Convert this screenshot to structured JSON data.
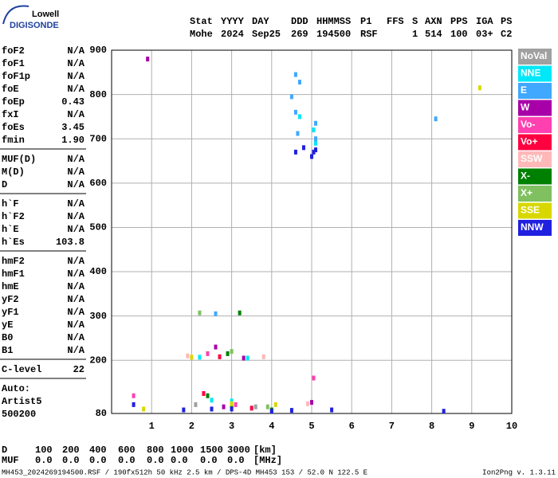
{
  "logo": {
    "line1": "Lowell",
    "line2": "DIGISONDE"
  },
  "header": [
    {
      "label": "Stat",
      "value": "Mohe"
    },
    {
      "label": "YYYY",
      "value": "2024"
    },
    {
      "label": "DAY",
      "value": "Sep25"
    },
    {
      "label": "DDD",
      "value": "269"
    },
    {
      "label": "HHMMSS",
      "value": "194500"
    },
    {
      "label": "P1",
      "value": "RSF"
    },
    {
      "label": "FFS"
    },
    {
      "label": "S",
      "value": "1"
    },
    {
      "label": "AXN",
      "value": "514"
    },
    {
      "label": "PPS",
      "value": "100"
    },
    {
      "label": "IGA",
      "value": "03+"
    },
    {
      "label": "PS",
      "value": "C2"
    }
  ],
  "parameters": [
    [
      [
        "foF2",
        "N/A"
      ],
      [
        "foF1",
        "N/A"
      ],
      [
        "foF1p",
        "N/A"
      ],
      [
        "foE",
        "N/A"
      ],
      [
        "foEp",
        "0.43"
      ],
      [
        "fxI",
        "N/A"
      ],
      [
        "foEs",
        "3.45"
      ],
      [
        "fmin",
        "1.90"
      ]
    ],
    [
      [
        "MUF(D)",
        "N/A"
      ],
      [
        "M(D)",
        "N/A"
      ],
      [
        "D",
        "N/A"
      ]
    ],
    [
      [
        "h`F",
        "N/A"
      ],
      [
        "h`F2",
        "N/A"
      ],
      [
        "h`E",
        "N/A"
      ],
      [
        "h`Es",
        "103.8"
      ]
    ],
    [
      [
        "hmF2",
        "N/A"
      ],
      [
        "hmF1",
        "N/A"
      ],
      [
        "hmE",
        "N/A"
      ],
      [
        "yF2",
        "N/A"
      ],
      [
        "yF1",
        "N/A"
      ],
      [
        "yE",
        "N/A"
      ],
      [
        "B0",
        "N/A"
      ],
      [
        "B1",
        "N/A"
      ]
    ],
    [
      [
        "C-level",
        "22"
      ]
    ]
  ],
  "autoscaling": [
    "Auto:",
    "Artist5",
    "500200"
  ],
  "bottom_table": [
    [
      "D",
      "100",
      "200",
      "400",
      "600",
      "800",
      "1000",
      "1500",
      "3000",
      "[km]"
    ],
    [
      "MUF",
      "0.0",
      "0.0",
      "0.0",
      "0.0",
      "0.0",
      "0.0",
      "0.0",
      "0.0",
      "[MHz]"
    ]
  ],
  "footer": {
    "left": "MH453_2024269194500.RSF / 190fx512h 50 kHz 2.5 km / DPS-4D MH453 153 / 52.0 N 122.5 E",
    "right": "Ion2Png v. 1.3.11"
  },
  "chart_data": {
    "type": "scatter",
    "xlim": [
      0,
      10
    ],
    "ylim": [
      80,
      900
    ],
    "xticks": [
      1,
      2,
      3,
      4,
      5,
      6,
      7,
      8,
      9,
      10
    ],
    "yticks": [
      80,
      200,
      300,
      400,
      500,
      600,
      700,
      800,
      900
    ],
    "grid": true,
    "legend": "right",
    "series": [
      {
        "name": "NoVal",
        "color": "#a0a0a0",
        "x": [
          2.1,
          3.6
        ],
        "y": [
          100,
          95
        ]
      },
      {
        "name": "NNE",
        "color": "#00e8f8",
        "x": [
          4.7,
          5.05,
          5.1,
          2.5,
          3.0,
          2.2,
          3.4
        ],
        "y": [
          750,
          720,
          690,
          110,
          108,
          207,
          205
        ]
      },
      {
        "name": "E",
        "color": "#40a8ff",
        "x": [
          4.6,
          4.7,
          4.5,
          4.6,
          8.1,
          5.1,
          5.1,
          4.65,
          2.6
        ],
        "y": [
          845,
          828,
          795,
          760,
          745,
          735,
          700,
          712,
          305
        ]
      },
      {
        "name": "W",
        "color": "#a800a8",
        "x": [
          0.9,
          2.6,
          3.3,
          2.8,
          5.0
        ],
        "y": [
          880,
          230,
          205,
          95,
          105
        ]
      },
      {
        "name": "Vo-",
        "color": "#ff40b0",
        "x": [
          2.4,
          3.1,
          5.05,
          0.55
        ],
        "y": [
          215,
          100,
          160,
          120
        ]
      },
      {
        "name": "Vo+",
        "color": "#ff0040",
        "x": [
          2.7,
          3.5,
          2.3
        ],
        "y": [
          208,
          92,
          125
        ]
      },
      {
        "name": "SSW",
        "color": "#ffb8b8",
        "x": [
          1.9,
          3.8,
          4.9
        ],
        "y": [
          210,
          208,
          102
        ]
      },
      {
        "name": "X-",
        "color": "#008000",
        "x": [
          2.9,
          3.2,
          2.4,
          3.0,
          4.0
        ],
        "y": [
          215,
          307,
          120,
          98,
          88
        ]
      },
      {
        "name": "X+",
        "color": "#80c060",
        "x": [
          2.2,
          3.0,
          3.9
        ],
        "y": [
          307,
          220,
          95
        ]
      },
      {
        "name": "SSE",
        "color": "#d8d800",
        "x": [
          9.2,
          2.0,
          3.0,
          4.1,
          0.8
        ],
        "y": [
          815,
          207,
          102,
          100,
          90
        ]
      },
      {
        "name": "NNW",
        "color": "#2020e0",
        "x": [
          4.8,
          5.0,
          5.05,
          5.1,
          4.6,
          2.5,
          3.0,
          4.0,
          5.5,
          8.3,
          0.55,
          1.8,
          4.5
        ],
        "y": [
          680,
          660,
          670,
          675,
          670,
          90,
          90,
          85,
          88,
          85,
          100,
          88,
          87
        ]
      }
    ]
  }
}
